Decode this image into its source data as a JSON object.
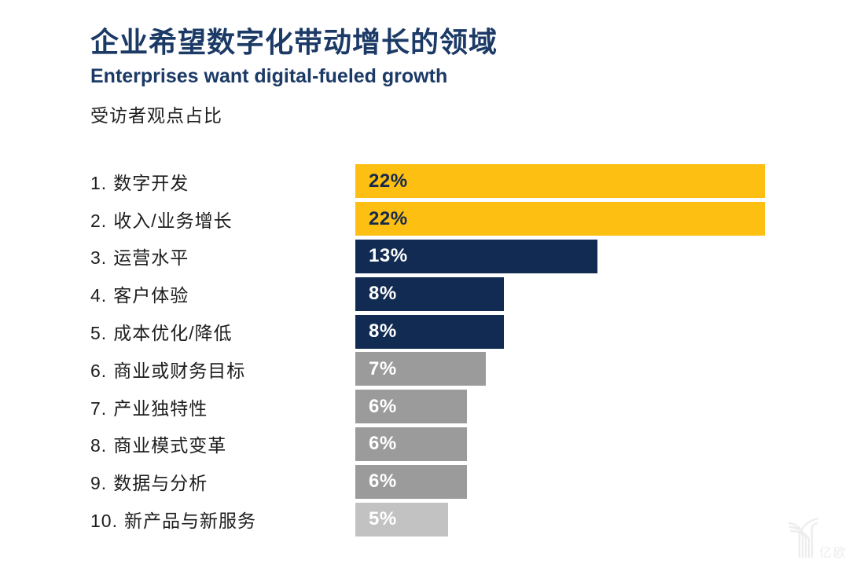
{
  "header": {
    "title_zh": "企业希望数字化带动增长的领域",
    "title_en": "Enterprises want digital-fueled growth",
    "note": "受访者观点占比"
  },
  "colors": {
    "title": "#1C3A66",
    "yellow": "#FCBF12",
    "navy": "#112B52",
    "gray": "#9B9B9B",
    "light_gray": "#C2C2C2",
    "label_text": "#1D1D1D",
    "value_on_yellow": "#14294E",
    "value_on_dark": "#FFFFFF"
  },
  "chart_data": {
    "type": "bar",
    "orientation": "horizontal",
    "title": "企业希望数字化带动增长的领域",
    "subtitle": "Enterprises want digital-fueled growth",
    "value_note": "受访者观点占比",
    "value_unit": "%",
    "xlim": [
      0,
      22
    ],
    "grid": false,
    "legend": false,
    "categories": [
      "数字开发",
      "收入/业务增长",
      "运营水平",
      "客户体验",
      "成本优化/降低",
      "商业或财务目标",
      "产业独特性",
      "商业模式变革",
      "数据与分析",
      "新产品与新服务"
    ],
    "values": [
      22,
      22,
      13,
      8,
      8,
      7,
      6,
      6,
      6,
      5
    ],
    "rows": [
      {
        "num": "1.",
        "label": "数字开发",
        "value": 22,
        "display": "22%",
        "bar_color": "#FCBF12",
        "value_color": "#14294E"
      },
      {
        "num": "2.",
        "label": "收入/业务增长",
        "value": 22,
        "display": "22%",
        "bar_color": "#FCBF12",
        "value_color": "#14294E"
      },
      {
        "num": "3.",
        "label": "运营水平",
        "value": 13,
        "display": "13%",
        "bar_color": "#112B52",
        "value_color": "#FFFFFF"
      },
      {
        "num": "4.",
        "label": "客户体验",
        "value": 8,
        "display": "8%",
        "bar_color": "#112B52",
        "value_color": "#FFFFFF"
      },
      {
        "num": "5.",
        "label": "成本优化/降低",
        "value": 8,
        "display": "8%",
        "bar_color": "#112B52",
        "value_color": "#FFFFFF"
      },
      {
        "num": "6.",
        "label": "商业或财务目标",
        "value": 7,
        "display": "7%",
        "bar_color": "#9B9B9B",
        "value_color": "#FFFFFF"
      },
      {
        "num": "7.",
        "label": "产业独特性",
        "value": 6,
        "display": "6%",
        "bar_color": "#9B9B9B",
        "value_color": "#FFFFFF"
      },
      {
        "num": "8.",
        "label": "商业模式变革",
        "value": 6,
        "display": "6%",
        "bar_color": "#9B9B9B",
        "value_color": "#FFFFFF"
      },
      {
        "num": "9.",
        "label": "数据与分析",
        "value": 6,
        "display": "6%",
        "bar_color": "#9B9B9B",
        "value_color": "#FFFFFF"
      },
      {
        "num": "10.",
        "label": "新产品与新服务",
        "value": 5,
        "display": "5%",
        "bar_color": "#C2C2C2",
        "value_color": "#FFFFFF"
      }
    ]
  },
  "watermark": {
    "text": "亿欧",
    "color": "#EDEDED"
  }
}
